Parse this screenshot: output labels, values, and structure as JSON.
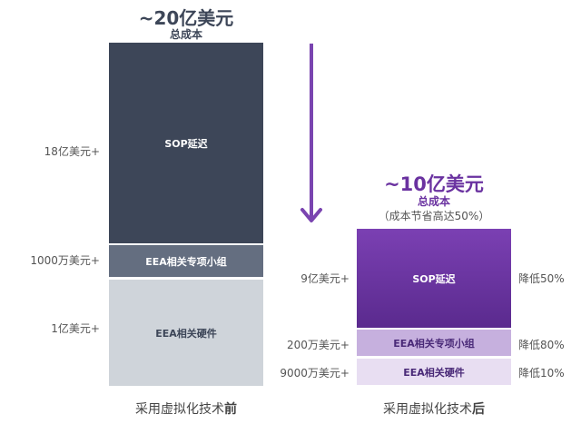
{
  "chart_data": {
    "type": "bar",
    "stacked": true,
    "title": "",
    "unit": "美元",
    "categories": [
      "采用虚拟化技术前",
      "采用虚拟化技术后"
    ],
    "segments": [
      "SOP延迟",
      "EEA相关专项小组",
      "EEA相关硬件"
    ],
    "series": [
      {
        "name": "SOP延迟",
        "values": [
          1800000000,
          900000000
        ]
      },
      {
        "name": "EEA相关专项小组",
        "values": [
          10000000,
          2000000
        ]
      },
      {
        "name": "EEA相关硬件",
        "values": [
          100000000,
          90000000
        ]
      }
    ],
    "colors": {
      "before": [
        "#3d4658",
        "#646e80",
        "#cfd4da"
      ],
      "after": [
        "#6a32a0",
        "#c6b0de",
        "#e8def2"
      ],
      "arrow": "#7a44b0"
    }
  },
  "before": {
    "total": "~20亿美元",
    "total_sub": "总成本",
    "caption_main": "采用虚拟化技术",
    "caption_bold": "前",
    "segments": [
      {
        "label": "SOP延迟",
        "value": "18亿美元+"
      },
      {
        "label": "EEA相关专项小组",
        "value": "1000万美元+"
      },
      {
        "label": "EEA相关硬件",
        "value": "1亿美元+"
      }
    ]
  },
  "after": {
    "total": "~10亿美元",
    "total_sub": "总成本",
    "savings": "（成本节省高达50%）",
    "caption_main": "采用虚拟化技术",
    "caption_bold": "后",
    "segments": [
      {
        "label": "SOP延迟",
        "value": "9亿美元+",
        "reduction": "降低50%"
      },
      {
        "label": "EEA相关专项小组",
        "value": "200万美元+",
        "reduction": "降低80%"
      },
      {
        "label": "EEA相关硬件",
        "value": "9000万美元+",
        "reduction": "降低10%"
      }
    ]
  }
}
